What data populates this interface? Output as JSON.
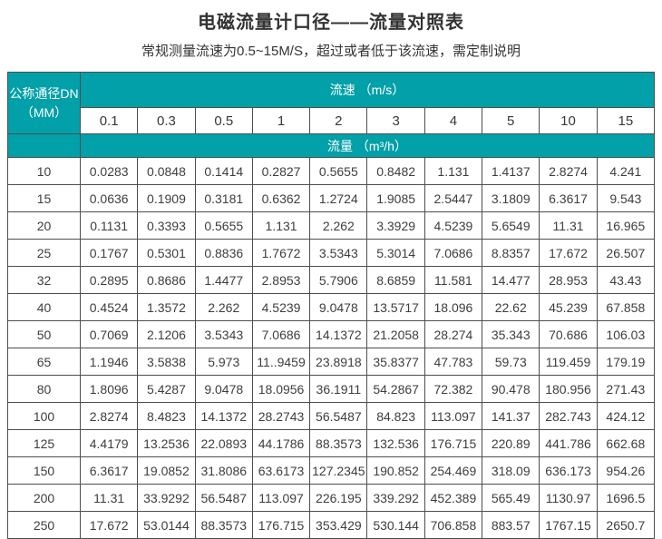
{
  "page": {
    "title": "电磁流量计口径——流量对照表",
    "subtitle": "常规测量流速为0.5~15M/S，超过或者低于该流速，需定制说明"
  },
  "colors": {
    "header_teal": "#02a0a8",
    "border_dark": "#4e4e4e",
    "body_text": "#3e3e3e",
    "header_text": "#ffffff"
  },
  "table": {
    "corner": {
      "line1": "公称通径DN",
      "line2": "（MM）"
    },
    "velocity_header": "流速 （m/s）",
    "flow_header": "流量 （m³/h）",
    "velocities": [
      "0.1",
      "0.3",
      "0.5",
      "1",
      "2",
      "3",
      "4",
      "5",
      "10",
      "15"
    ],
    "rows": [
      {
        "dn": "10",
        "values": [
          "0.0283",
          "0.0848",
          "0.1414",
          "0.2827",
          "0.5655",
          "0.8482",
          "1.131",
          "1.4137",
          "2.8274",
          "4.241"
        ]
      },
      {
        "dn": "15",
        "values": [
          "0.0636",
          "0.1909",
          "0.3181",
          "0.6362",
          "1.2724",
          "1.9085",
          "2.5447",
          "3.1809",
          "6.3617",
          "9.543"
        ]
      },
      {
        "dn": "20",
        "values": [
          "0.1131",
          "0.3393",
          "0.5655",
          "1.131",
          "2.262",
          "3.3929",
          "4.5239",
          "5.6549",
          "11.31",
          "16.965"
        ]
      },
      {
        "dn": "25",
        "values": [
          "0.1767",
          "0.5301",
          "0.8836",
          "1.7672",
          "3.5343",
          "5.3014",
          "7.0686",
          "8.8357",
          "17.672",
          "26.507"
        ]
      },
      {
        "dn": "32",
        "values": [
          "0.2895",
          "0.8686",
          "1.4477",
          "2.8953",
          "5.7906",
          "8.6859",
          "11.581",
          "14.477",
          "28.953",
          "43.43"
        ]
      },
      {
        "dn": "40",
        "values": [
          "0.4524",
          "1.3572",
          "2.262",
          "4.5239",
          "9.0478",
          "13.5717",
          "18.096",
          "22.62",
          "45.239",
          "67.858"
        ]
      },
      {
        "dn": "50",
        "values": [
          "0.7069",
          "2.1206",
          "3.5343",
          "7.0686",
          "14.1372",
          "21.2058",
          "28.274",
          "35.343",
          "70.686",
          "106.03"
        ]
      },
      {
        "dn": "65",
        "values": [
          "1.1946",
          "3.5838",
          "5.973",
          "11..9459",
          "23.8918",
          "35.8377",
          "47.783",
          "59.73",
          "119.459",
          "179.19"
        ]
      },
      {
        "dn": "80",
        "values": [
          "1.8096",
          "5.4287",
          "9.0478",
          "18.0956",
          "36.1911",
          "54.2867",
          "72.382",
          "90.478",
          "180.956",
          "271.43"
        ]
      },
      {
        "dn": "100",
        "values": [
          "2.8274",
          "8.4823",
          "14.1372",
          "28.2743",
          "56.5487",
          "84.823",
          "113.097",
          "141.37",
          "282.743",
          "424.12"
        ]
      },
      {
        "dn": "125",
        "values": [
          "4.4179",
          "13.2536",
          "22.0893",
          "44.1786",
          "88.3573",
          "132.536",
          "176.715",
          "220.89",
          "441.786",
          "662.68"
        ]
      },
      {
        "dn": "150",
        "values": [
          "6.3617",
          "19.0852",
          "31.8086",
          "63.6173",
          "127.2345",
          "190.852",
          "254.469",
          "318.09",
          "636.173",
          "954.26"
        ]
      },
      {
        "dn": "200",
        "values": [
          "11.31",
          "33.9292",
          "56.5487",
          "113.097",
          "226.195",
          "339.292",
          "452.389",
          "565.49",
          "1130.97",
          "1696.5"
        ]
      },
      {
        "dn": "250",
        "values": [
          "17.672",
          "53.0144",
          "88.3573",
          "176.715",
          "353.429",
          "530.144",
          "706.858",
          "883.57",
          "1767.15",
          "2650.7"
        ]
      }
    ]
  }
}
